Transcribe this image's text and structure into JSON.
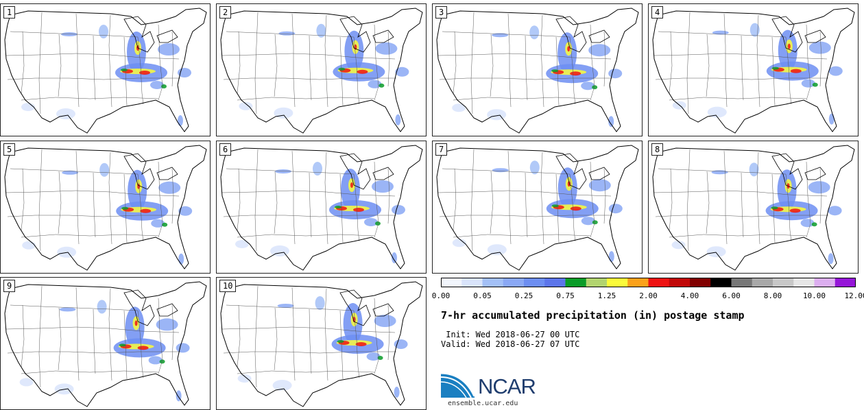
{
  "panels": [
    "1",
    "2",
    "3",
    "4",
    "5",
    "6",
    "7",
    "8",
    "9",
    "10"
  ],
  "colorbar": {
    "colors": [
      "#f2f6fd",
      "#d9e4fb",
      "#a3c0f7",
      "#8aa8f5",
      "#6d8ef2",
      "#5c75ea",
      "#0a9c28",
      "#b2d46f",
      "#fbfb3a",
      "#fba11a",
      "#ee1212",
      "#c00707",
      "#800000",
      "#000000",
      "#777777",
      "#a8a8a8",
      "#c8c8c8",
      "#e6e6e6",
      "#dcaef0",
      "#9515d8"
    ],
    "labels": [
      "0.00",
      "0.05",
      "0.25",
      "0.75",
      "1.25",
      "2.00",
      "4.00",
      "6.00",
      "8.00",
      "10.00",
      "12.00"
    ]
  },
  "title": "7-hr accumulated precipitation (in) postage stamp",
  "init": " Init: Wed 2018-06-27 00 UTC",
  "valid": "Valid: Wed 2018-06-27 07 UTC",
  "logo_text": "NCAR",
  "url": "ensemble.ucar.edu",
  "map_data": {
    "region": "Contiguous United States",
    "field": "7-hr accumulated precipitation (in)",
    "members": 10
  }
}
